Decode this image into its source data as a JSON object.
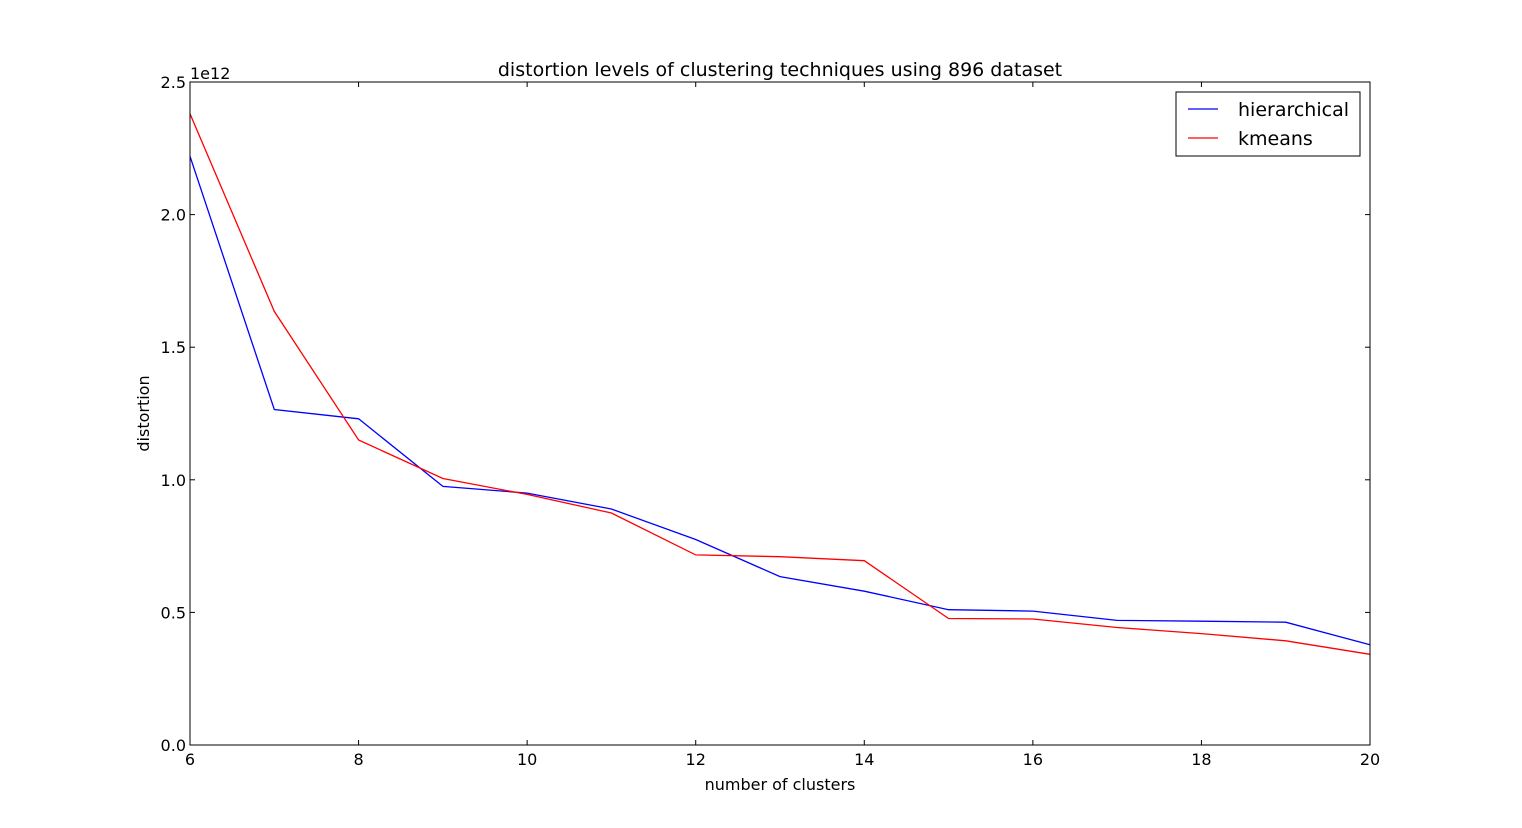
{
  "chart_data": {
    "type": "line",
    "title": "distortion levels of clustering techniques using 896 dataset",
    "xlabel": "number of clusters",
    "ylabel": "distortion",
    "y_scale_label": "1e12",
    "xlim": [
      6,
      20
    ],
    "ylim": [
      0.0,
      2.5
    ],
    "x_ticks": [
      6,
      8,
      10,
      12,
      14,
      16,
      18,
      20
    ],
    "x_tick_labels": [
      "6",
      "8",
      "10",
      "12",
      "14",
      "16",
      "18",
      "20"
    ],
    "y_ticks": [
      0.0,
      0.5,
      1.0,
      1.5,
      2.0,
      2.5
    ],
    "y_tick_labels": [
      "0.0",
      "0.5",
      "1.0",
      "1.5",
      "2.0",
      "2.5"
    ],
    "grid": false,
    "legend_position": "top-right",
    "x": [
      6,
      7,
      8,
      9,
      10,
      11,
      12,
      13,
      14,
      15,
      16,
      17,
      18,
      19,
      20
    ],
    "series": [
      {
        "name": "hierarchical",
        "color": "#0000ff",
        "values": [
          2.22,
          1.265,
          1.23,
          0.975,
          0.95,
          0.89,
          0.775,
          0.635,
          0.58,
          0.51,
          0.505,
          0.47,
          0.467,
          0.463,
          0.378
        ]
      },
      {
        "name": "kmeans",
        "color": "#ff0000",
        "values": [
          2.38,
          1.635,
          1.15,
          1.005,
          0.945,
          0.875,
          0.717,
          0.71,
          0.695,
          0.477,
          0.475,
          0.443,
          0.42,
          0.393,
          0.342
        ]
      }
    ]
  }
}
